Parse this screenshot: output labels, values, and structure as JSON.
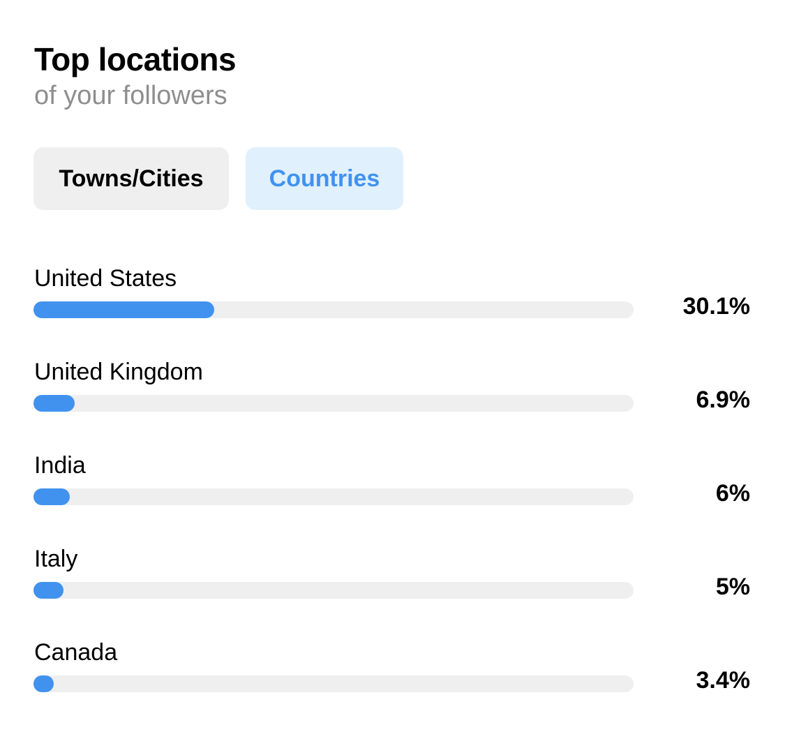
{
  "header": {
    "title": "Top locations",
    "subtitle": "of your followers"
  },
  "tabs": [
    {
      "label": "Towns/Cities",
      "selected": false
    },
    {
      "label": "Countries",
      "selected": true
    }
  ],
  "colors": {
    "accent": "#4192ef",
    "track": "#efefef",
    "selected_tab_bg": "#e1f0fd"
  },
  "locations": [
    {
      "name": "United States",
      "percent_label": "30.1%",
      "percent": 30.1
    },
    {
      "name": "United Kingdom",
      "percent_label": "6.9%",
      "percent": 6.9
    },
    {
      "name": "India",
      "percent_label": "6%",
      "percent": 6
    },
    {
      "name": "Italy",
      "percent_label": "5%",
      "percent": 5
    },
    {
      "name": "Canada",
      "percent_label": "3.4%",
      "percent": 3.4
    }
  ]
}
